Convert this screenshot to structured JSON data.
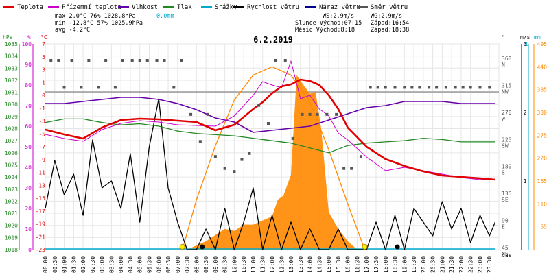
{
  "colors": {
    "temp": "#e00000",
    "feels": "#cc00cc",
    "hum": "#6600aa",
    "press": "#228822",
    "precip": "#00aacc",
    "wind": "#000000",
    "gust": "#000088",
    "dir": "#555555",
    "solar": "#ff8800",
    "zero": "#888888"
  },
  "legend": [
    {
      "key": "temp",
      "label": "Teplota"
    },
    {
      "key": "feels",
      "label": "Přízemní teplota"
    },
    {
      "key": "hum",
      "label": "Vlhkost"
    },
    {
      "key": "press",
      "label": "Tlak"
    },
    {
      "key": "precip",
      "label": "Srážky"
    },
    {
      "key": "wind",
      "label": "Rychlost větru"
    },
    {
      "key": "gust",
      "label": "Náraz větru"
    },
    {
      "key": "dir",
      "label": "Směr větru"
    }
  ],
  "stats": {
    "max": "max  2.0°C  76%  1028.8hPa",
    "max_precip": "0.0mm",
    "min": "min -12.8°C 57%  1025.9hPa",
    "avg": "avg -4.2°C",
    "ws": "WS:2.9m/s",
    "wg": "WG:2.9m/s",
    "sun": "Slunce Východ:07:15",
    "sun_set": "Západ:16:54",
    "moon": "Měsíc  Východ:8:18",
    "moon_set": "Západ:18:38"
  },
  "chart_data": {
    "type": "line",
    "title": "6.2.2019",
    "xlabel": "čas",
    "x_ticks": [
      "00:00",
      "00:30",
      "01:00",
      "01:30",
      "02:00",
      "02:30",
      "03:00",
      "03:30",
      "04:00",
      "04:30",
      "05:00",
      "05:30",
      "06:00",
      "06:30",
      "07:00",
      "07:30",
      "08:00",
      "08:30",
      "09:00",
      "09:30",
      "10:00",
      "10:30",
      "11:00",
      "11:30",
      "12:00",
      "12:30",
      "13:00",
      "13:30",
      "14:00",
      "14:30",
      "15:00",
      "15:30",
      "16:00",
      "16:30",
      "17:00",
      "17:30",
      "18:00",
      "18:30",
      "19:00",
      "19:30",
      "20:00",
      "20:30",
      "21:00",
      "21:30",
      "22:00",
      "22:30",
      "23:00",
      "23:30"
    ],
    "axes": {
      "hpa": {
        "label": "hPa",
        "ticks": [
          "1035",
          "1034",
          "1033",
          "1032",
          "1031",
          "1030",
          "1029",
          "1028",
          "1027",
          "1026",
          "1025",
          "1024",
          "1023",
          "1022",
          "1021",
          "1020",
          "1019",
          "1018"
        ],
        "range": [
          1018,
          1035
        ]
      },
      "percent": {
        "label": "%",
        "ticks": [
          "100",
          "90",
          "80",
          "70",
          "60",
          "50",
          "40",
          "30",
          "20",
          "10",
          "0"
        ],
        "range": [
          0,
          100
        ]
      },
      "celsius": {
        "label": "°C",
        "ticks": [
          "7",
          "5",
          "3",
          "1",
          "0",
          "-1",
          "-3",
          "-5",
          "-7",
          "-9",
          "-11",
          "-13",
          "-15",
          "-17",
          "-19",
          "-21",
          "-23"
        ],
        "range": [
          -23,
          7
        ]
      },
      "direction": {
        "label": "°",
        "ticks": [
          "360",
          "315",
          "270",
          "225",
          "180",
          "135",
          "90",
          "45"
        ],
        "dirs": [
          "N",
          "NW",
          "W",
          "SW",
          "S",
          "SE",
          "E",
          "NE"
        ]
      },
      "wind": {
        "label": "m/s",
        "ticks": [
          "3",
          "2",
          "1"
        ],
        "range": [
          0,
          3
        ]
      },
      "precip": {
        "label": "mm",
        "ticks": [
          "1"
        ]
      },
      "solar": {
        "ticks": [
          "495",
          "440",
          "385",
          "330",
          "275",
          "220",
          "165",
          "110",
          "55"
        ],
        "range": [
          0,
          495
        ]
      },
      "hpa_axis_right_note": "",
      "percent_extra": ""
    },
    "series": [
      {
        "name": "Teplota",
        "unit": "°C",
        "x": [
          0,
          1,
          2,
          3,
          4,
          5,
          6,
          7,
          8,
          9,
          10,
          11,
          11.5,
          12,
          12.5,
          13,
          13.5,
          14,
          14.5,
          15,
          15.5,
          16,
          17,
          18,
          19,
          20,
          21,
          22,
          23,
          23.8
        ],
        "values": [
          -5.5,
          -6.2,
          -6.8,
          -5.2,
          -4.1,
          -3.9,
          -4.0,
          -4.2,
          -4.4,
          -5.6,
          -4.8,
          -2.5,
          -1.5,
          -0.2,
          0.8,
          1.1,
          1.8,
          1.6,
          1.0,
          -0.5,
          -2.5,
          -5.2,
          -8.0,
          -9.8,
          -10.8,
          -11.6,
          -12.2,
          -12.4,
          -12.6,
          -12.8
        ]
      },
      {
        "name": "Přízemní teplota",
        "unit": "°C",
        "x": [
          0,
          1,
          2,
          3,
          4,
          5,
          6,
          7,
          8,
          9,
          10,
          11,
          11.5,
          12,
          12.5,
          13,
          13.5,
          14,
          14.5,
          15,
          15.5,
          16,
          17,
          18,
          19,
          20,
          21,
          22,
          23,
          23.8
        ],
        "values": [
          -6.2,
          -6.8,
          -7.2,
          -5.5,
          -4.6,
          -4.2,
          -4.4,
          -4.8,
          -4.9,
          -5.0,
          -3.5,
          -0.5,
          1.5,
          1.0,
          0.6,
          4.5,
          -1.0,
          -0.5,
          -2.5,
          -3.5,
          -6.0,
          -7.0,
          -9.5,
          -11.5,
          -11.0,
          -11.5,
          -12.0,
          -12.5,
          -12.8,
          -12.8
        ]
      },
      {
        "name": "Vlhkost",
        "unit": "%",
        "x": [
          0,
          1,
          2,
          3,
          4,
          5,
          6,
          7,
          8,
          9,
          10,
          11,
          12,
          13,
          14,
          15,
          16,
          17,
          18,
          19,
          20,
          21,
          22,
          23,
          23.8
        ],
        "values": [
          71,
          71,
          72,
          73,
          74,
          74,
          73,
          71,
          68,
          64,
          62,
          57,
          58,
          59,
          60,
          63,
          66,
          69,
          70,
          72,
          72,
          72,
          71,
          71,
          71
        ]
      },
      {
        "name": "Tlak",
        "unit": "hPa",
        "x": [
          0,
          1,
          2,
          3,
          4,
          5,
          6,
          7,
          8,
          9,
          10,
          11,
          12,
          13,
          14,
          15,
          16,
          17,
          18,
          19,
          20,
          21,
          22,
          23,
          23.8
        ],
        "values": [
          1028.5,
          1028.8,
          1028.8,
          1028.5,
          1028.3,
          1028.4,
          1028.2,
          1027.8,
          1027.6,
          1027.5,
          1027.4,
          1027.2,
          1027.0,
          1026.8,
          1026.4,
          1026.0,
          1026.6,
          1026.8,
          1026.9,
          1027.0,
          1027.2,
          1027.1,
          1026.9,
          1026.9,
          1026.9
        ]
      },
      {
        "name": "Rychlost větru",
        "unit": "m/s",
        "x": [
          0,
          0.5,
          1,
          1.5,
          2,
          2.5,
          3,
          3.5,
          4,
          4.5,
          5,
          5.5,
          6,
          6.5,
          7,
          7.5,
          8,
          8.5,
          9,
          9.5,
          10,
          10.5,
          11,
          11.5,
          12,
          12.5,
          13,
          13.5,
          14,
          14.5,
          15,
          15.5,
          16,
          16.5,
          17,
          17.5,
          18,
          18.5,
          19,
          19.5,
          20,
          20.5,
          21,
          21.5,
          22,
          22.5,
          23,
          23.5,
          23.8
        ],
        "values": [
          0.6,
          1.3,
          0.8,
          1.1,
          0.5,
          1.6,
          0.9,
          1.0,
          0.6,
          1.4,
          0.4,
          1.5,
          2.2,
          0.9,
          0.4,
          0.0,
          0.0,
          0.3,
          0.0,
          0.6,
          0.0,
          0.4,
          0.9,
          0.0,
          0.5,
          0.0,
          0.4,
          0.0,
          0.3,
          0.0,
          0.0,
          0.3,
          0.0,
          0.0,
          0.0,
          0.4,
          0.0,
          0.5,
          0.0,
          0.6,
          0.4,
          0.2,
          0.7,
          0.3,
          0.6,
          0.1,
          0.5,
          0.2,
          0.4
        ]
      },
      {
        "name": "Srážky",
        "unit": "mm",
        "x": [
          0,
          23.8
        ],
        "values": [
          0,
          0
        ]
      },
      {
        "name": "Solar",
        "unit": "W/m2",
        "x": [
          7.5,
          8,
          8.5,
          9,
          9.5,
          10,
          10.5,
          11,
          11.5,
          12,
          12.3,
          12.6,
          13,
          13.3,
          13.6,
          14,
          14.3,
          14.6,
          15,
          15.5,
          16,
          16.5
        ],
        "values": [
          0,
          10,
          20,
          35,
          50,
          45,
          60,
          60,
          70,
          80,
          120,
          130,
          180,
          420,
          400,
          375,
          380,
          290,
          90,
          50,
          20,
          0
        ]
      },
      {
        "name": "Solar max",
        "unit": "W/m2",
        "x": [
          7.25,
          8,
          9,
          10,
          11,
          12,
          13,
          14,
          15,
          16,
          16.9
        ],
        "values": [
          0,
          120,
          250,
          360,
          420,
          440,
          420,
          355,
          240,
          110,
          0
        ]
      },
      {
        "name": "Směr větru",
        "unit": "°",
        "x": [
          0.3,
          0.7,
          1.0,
          1.4,
          1.9,
          2.3,
          2.8,
          3.2,
          3.7,
          4.1,
          4.6,
          5.0,
          5.4,
          5.9,
          6.3,
          6.8,
          7.2,
          7.7,
          8.2,
          8.6,
          9.0,
          9.5,
          10.0,
          10.4,
          10.8,
          11.3,
          11.8,
          12.2,
          12.7,
          13.1,
          13.6,
          14.0,
          14.4,
          14.9,
          15.4,
          15.8,
          16.2,
          16.7,
          17.2,
          17.6,
          18.0,
          18.5,
          19.0,
          19.4,
          19.8,
          20.3,
          20.7,
          21.2,
          21.7,
          22.1,
          22.5,
          23.0,
          23.5
        ],
        "values": [
          360,
          360,
          315,
          360,
          315,
          360,
          315,
          360,
          315,
          360,
          360,
          360,
          360,
          360,
          360,
          315,
          360,
          270,
          225,
          270,
          200,
          180,
          175,
          195,
          205,
          285,
          255,
          360,
          360,
          230,
          270,
          270,
          270,
          270,
          270,
          180,
          180,
          200,
          315,
          315,
          315,
          315,
          315,
          315,
          315,
          315,
          315,
          315,
          315,
          315,
          315,
          315,
          315
        ]
      }
    ]
  }
}
